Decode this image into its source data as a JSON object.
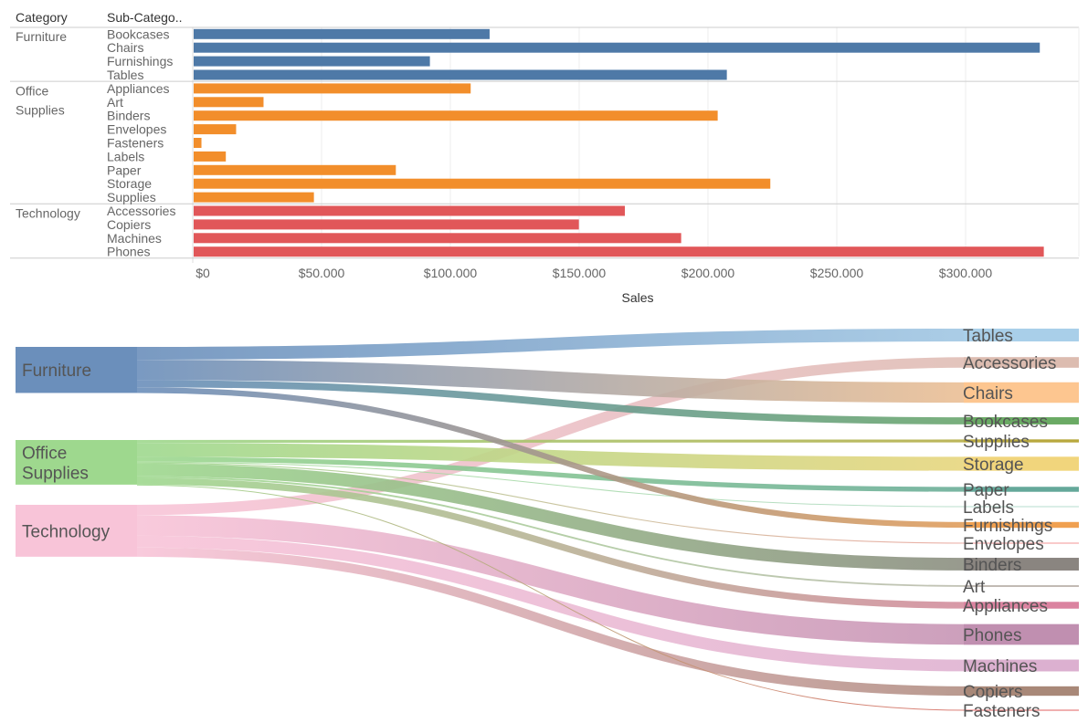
{
  "chart_data": [
    {
      "type": "bar",
      "orientation": "horizontal",
      "headers": {
        "category": "Category",
        "subcategory": "Sub-Catego.."
      },
      "xlabel": "Sales",
      "xlim": [
        0,
        340000
      ],
      "ticks": [
        {
          "value": 0,
          "label": "$0"
        },
        {
          "value": 50000,
          "label": "$50.000"
        },
        {
          "value": 100000,
          "label": "$100.000"
        },
        {
          "value": 150000,
          "label": "$150.000"
        },
        {
          "value": 200000,
          "label": "$200.000"
        },
        {
          "value": 250000,
          "label": "$250.000"
        },
        {
          "value": 300000,
          "label": "$300.000"
        }
      ],
      "grid": true,
      "groups": [
        {
          "category": "Furniture",
          "color": "#4e79a7",
          "items": [
            {
              "name": "Bookcases",
              "value": 114880
            },
            {
              "name": "Chairs",
              "value": 328449
            },
            {
              "name": "Furnishings",
              "value": 91705
            },
            {
              "name": "Tables",
              "value": 206966
            }
          ]
        },
        {
          "category": "Office Supplies",
          "color": "#f28e2b",
          "items": [
            {
              "name": "Appliances",
              "value": 107532
            },
            {
              "name": "Art",
              "value": 27119
            },
            {
              "name": "Binders",
              "value": 203413
            },
            {
              "name": "Envelopes",
              "value": 16476
            },
            {
              "name": "Fasteners",
              "value": 3024
            },
            {
              "name": "Labels",
              "value": 12486
            },
            {
              "name": "Paper",
              "value": 78479
            },
            {
              "name": "Storage",
              "value": 223844
            },
            {
              "name": "Supplies",
              "value": 46674
            }
          ]
        },
        {
          "category": "Technology",
          "color": "#e15759",
          "items": [
            {
              "name": "Accessories",
              "value": 167380
            },
            {
              "name": "Copiers",
              "value": 149528
            },
            {
              "name": "Machines",
              "value": 189239
            },
            {
              "name": "Phones",
              "value": 330007
            }
          ]
        }
      ]
    },
    {
      "type": "sankey",
      "sources": [
        {
          "name": "Furniture",
          "color": "#6b8fbb"
        },
        {
          "name": "Office Supplies",
          "color": "#9ed88e"
        },
        {
          "name": "Technology",
          "color": "#f8c4d8"
        }
      ],
      "targets": [
        {
          "name": "Tables",
          "source": "Furniture",
          "value": 206966,
          "color": "#a9cfe9"
        },
        {
          "name": "Accessories",
          "source": "Technology",
          "value": 167380,
          "color": "#dcbcb0"
        },
        {
          "name": "Chairs",
          "source": "Furniture",
          "value": 328449,
          "color": "#fdc690"
        },
        {
          "name": "Bookcases",
          "source": "Furniture",
          "value": 114880,
          "color": "#6aaa64"
        },
        {
          "name": "Supplies",
          "source": "Office Supplies",
          "value": 46674,
          "color": "#b8a83e"
        },
        {
          "name": "Storage",
          "source": "Office Supplies",
          "value": 223844,
          "color": "#f1d57c"
        },
        {
          "name": "Paper",
          "source": "Office Supplies",
          "value": 78479,
          "color": "#64a89a"
        },
        {
          "name": "Labels",
          "source": "Office Supplies",
          "value": 12486,
          "color": "#b6dccf"
        },
        {
          "name": "Furnishings",
          "source": "Furniture",
          "value": 91705,
          "color": "#f0a050"
        },
        {
          "name": "Envelopes",
          "source": "Office Supplies",
          "value": 16476,
          "color": "#f4a0a0"
        },
        {
          "name": "Binders",
          "source": "Office Supplies",
          "value": 203413,
          "color": "#8a8580"
        },
        {
          "name": "Art",
          "source": "Office Supplies",
          "value": 27119,
          "color": "#c0b8b2"
        },
        {
          "name": "Appliances",
          "source": "Office Supplies",
          "value": 107532,
          "color": "#db83a0"
        },
        {
          "name": "Phones",
          "source": "Technology",
          "value": 330007,
          "color": "#c08fb0"
        },
        {
          "name": "Machines",
          "source": "Technology",
          "value": 189239,
          "color": "#dcb0d0"
        },
        {
          "name": "Copiers",
          "source": "Technology",
          "value": 149528,
          "color": "#a88878"
        },
        {
          "name": "Fasteners",
          "source": "Office Supplies",
          "value": 3024,
          "color": "#e06060"
        }
      ]
    }
  ]
}
